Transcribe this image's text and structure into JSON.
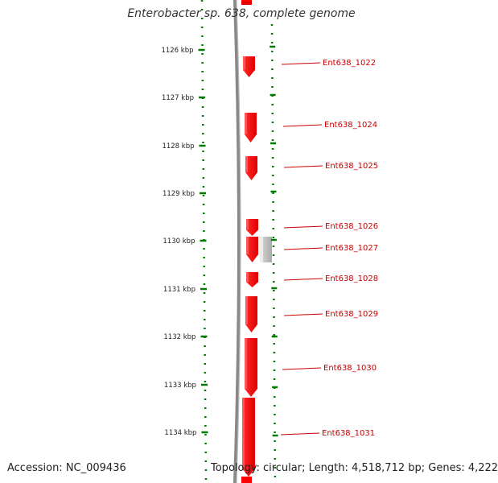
{
  "title": "Enterobacter sp. 638, complete genome",
  "accession_text": "Accession: NC_009436",
  "topology_text": "Topology: circular; Length: 4,518,712 bp; Genes: 4,222",
  "colors": {
    "gene": "#ff0000",
    "gene_label": "#cc0000",
    "ruler": "#007a00",
    "backbone": "#888888",
    "feature_gray": "#c8c8c8"
  },
  "ruler_ticks": [
    "1126 kbp",
    "1127 kbp",
    "1128 kbp",
    "1129 kbp",
    "1130 kbp",
    "1131 kbp",
    "1132 kbp",
    "1133 kbp",
    "1134 kbp"
  ],
  "genes": [
    {
      "label": "Ent638_1022"
    },
    {
      "label": "Ent638_1024"
    },
    {
      "label": "Ent638_1025"
    },
    {
      "label": "Ent638_1026"
    },
    {
      "label": "Ent638_1027"
    },
    {
      "label": "Ent638_1028"
    },
    {
      "label": "Ent638_1029"
    },
    {
      "label": "Ent638_1030"
    },
    {
      "label": "Ent638_1031"
    }
  ]
}
